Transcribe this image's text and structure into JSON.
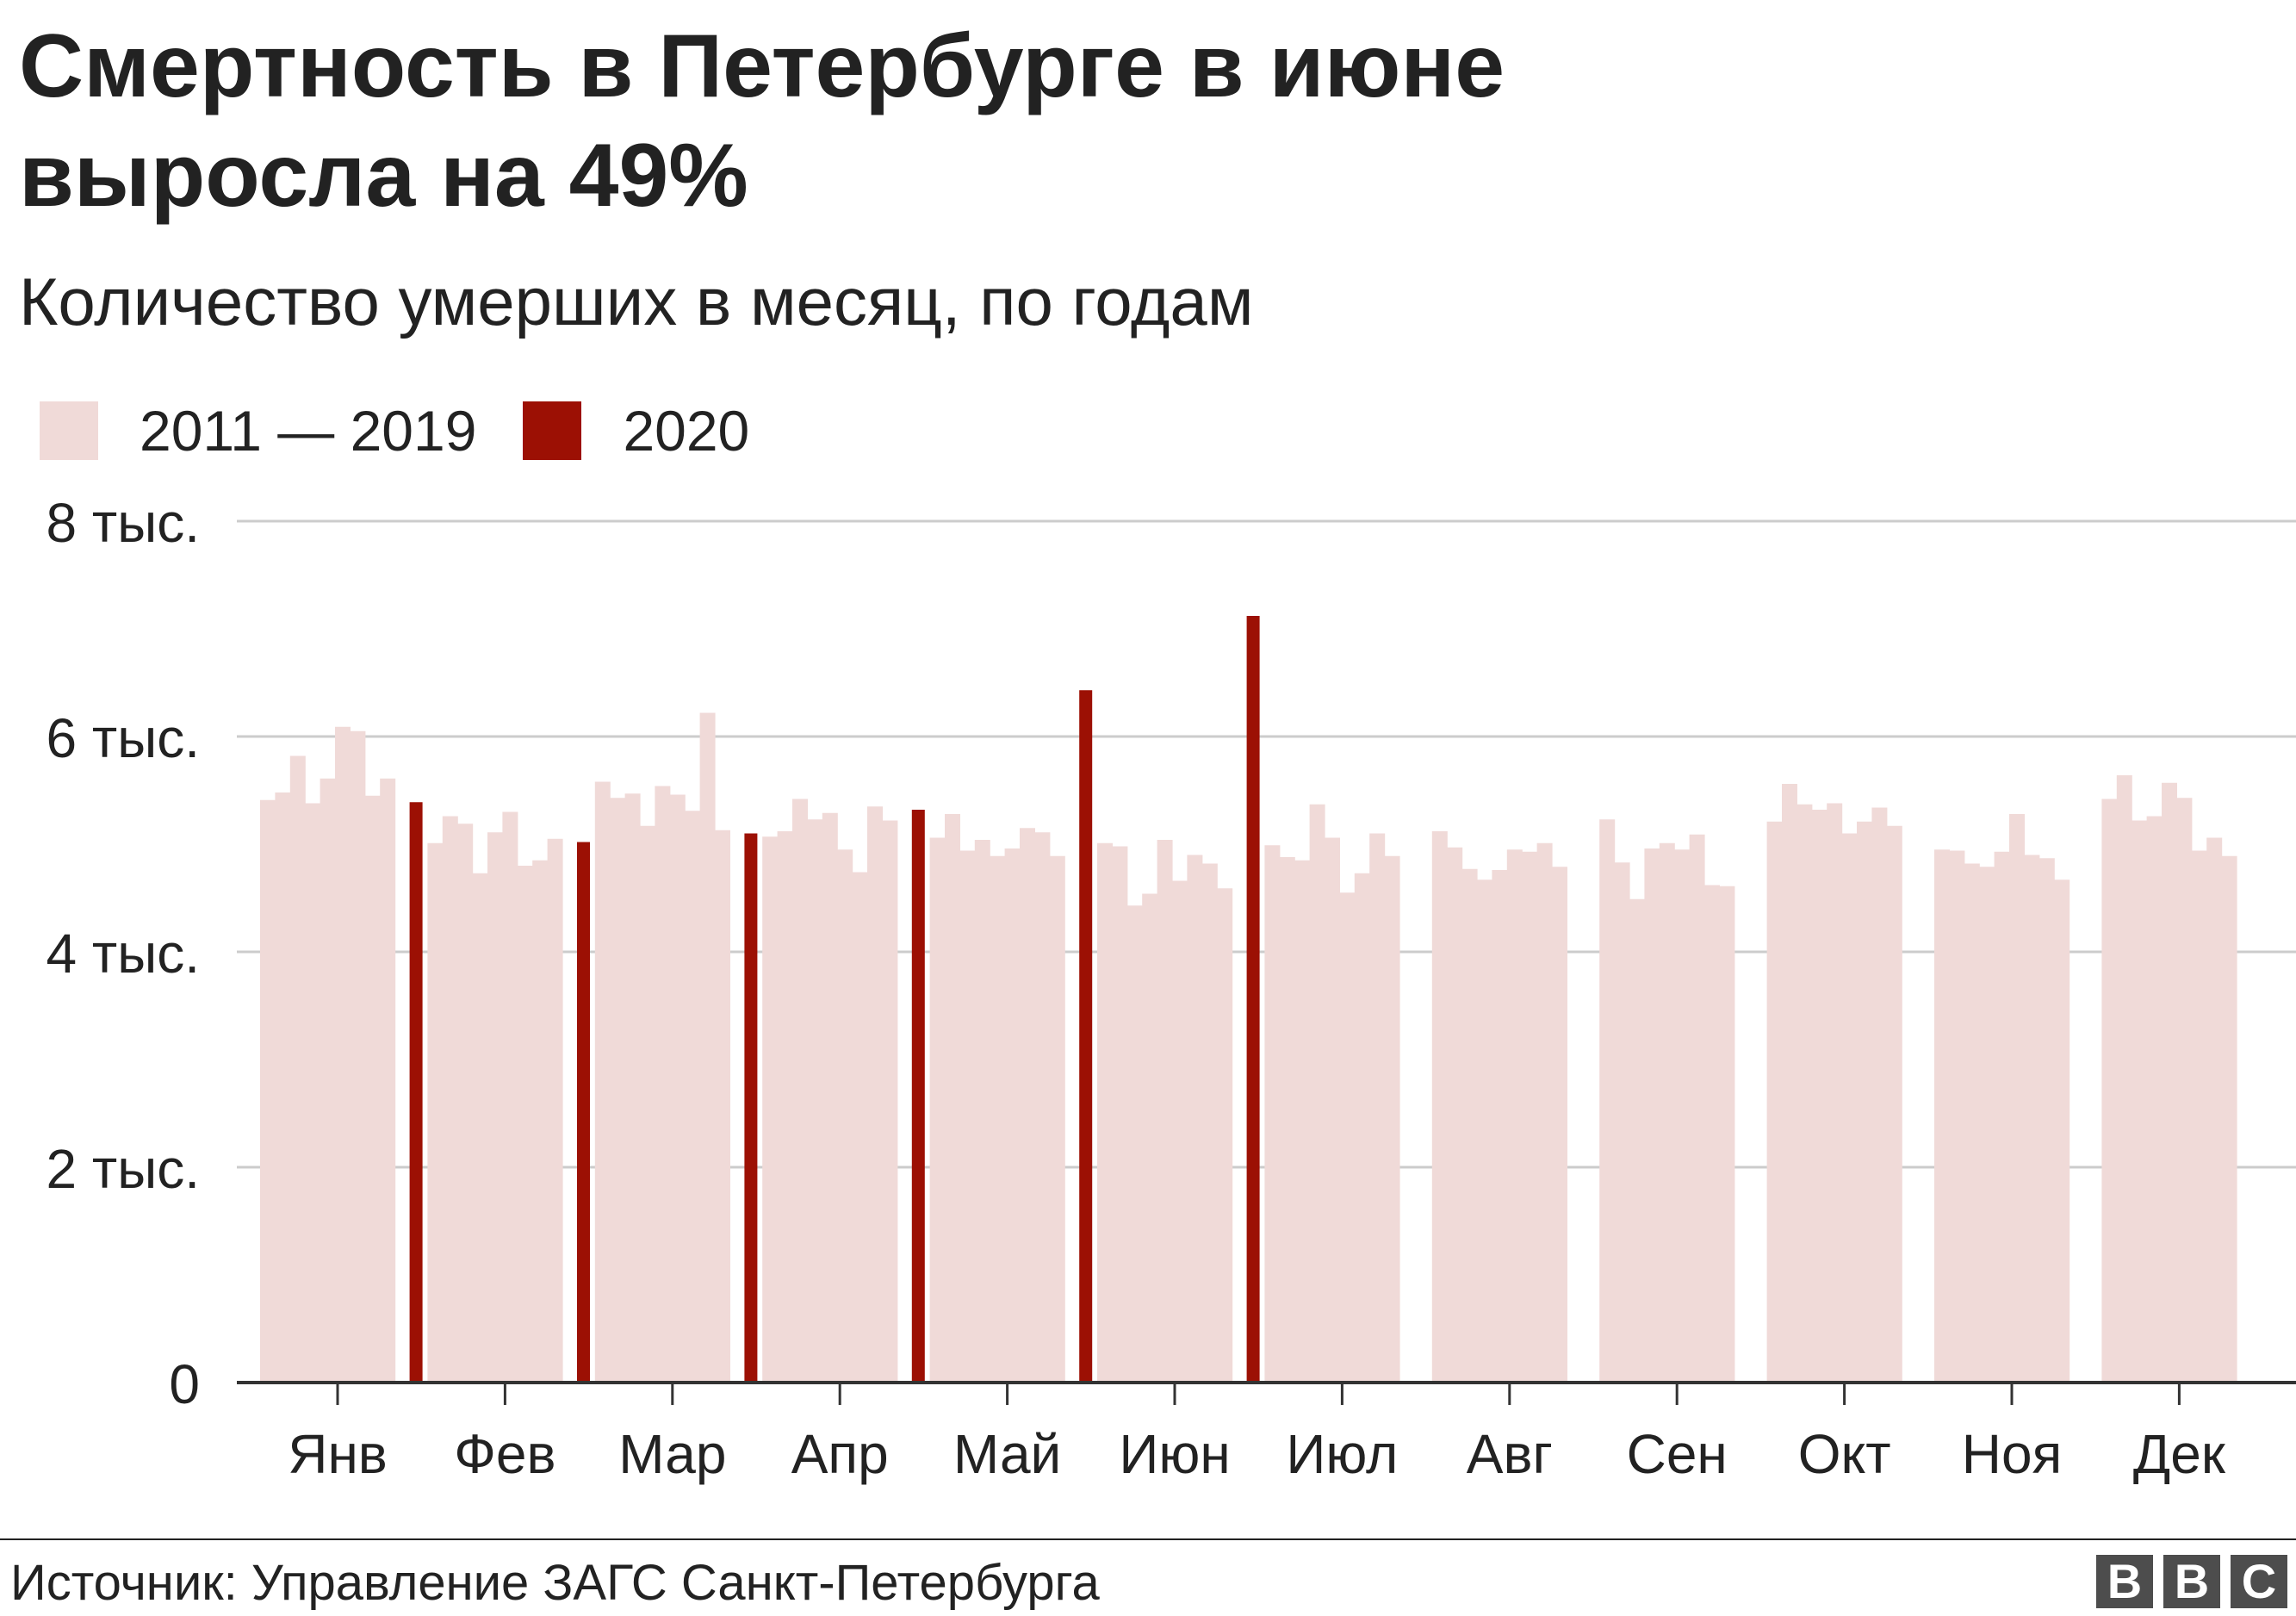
{
  "title": "Смертность в Петербурге в июне выросла на 49%",
  "subtitle": "Количество умерших в месяц, по годам",
  "legend": [
    {
      "label": "2011 — 2019",
      "color": "#f0dad8"
    },
    {
      "label": "2020",
      "color": "#9c1004"
    }
  ],
  "source": "Источник: Управление ЗАГС Санкт-Петербурга",
  "logo": [
    "B",
    "B",
    "C"
  ],
  "chart_data": {
    "type": "bar",
    "categories": [
      "Янв",
      "Фев",
      "Мар",
      "Апр",
      "Май",
      "Июн",
      "Июл",
      "Авг",
      "Сен",
      "Окт",
      "Ноя",
      "Дек"
    ],
    "yticks": [
      0,
      2000,
      4000,
      6000,
      8000
    ],
    "ytick_labels": [
      "0",
      "2 тыс.",
      "4 тыс.",
      "6 тыс.",
      "8 тыс."
    ],
    "ylim": [
      0,
      8000
    ],
    "grid": true,
    "legend_position": "top-left",
    "series": [
      {
        "name": "2011",
        "values": [
          5410,
          5010,
          5580,
          5070,
          5060,
          5010,
          4990,
          5120,
          5230,
          5210,
          4950,
          5420
        ]
      },
      {
        "name": "2012",
        "values": [
          5480,
          5260,
          5430,
          5120,
          5280,
          4980,
          4880,
          4970,
          4830,
          5560,
          4940,
          5640
        ]
      },
      {
        "name": "2013",
        "values": [
          5820,
          5190,
          5470,
          5420,
          4940,
          4430,
          4850,
          4770,
          4490,
          5370,
          4820,
          5220
        ]
      },
      {
        "name": "2014",
        "values": [
          5380,
          4730,
          5170,
          5230,
          5040,
          4540,
          5370,
          4670,
          4960,
          5320,
          4790,
          5260
        ]
      },
      {
        "name": "2015",
        "values": [
          5610,
          5110,
          5540,
          5290,
          4890,
          5040,
          5060,
          4760,
          5010,
          5380,
          4930,
          5570
        ]
      },
      {
        "name": "2016",
        "values": [
          6090,
          5300,
          5460,
          4950,
          4960,
          4660,
          4550,
          4950,
          4950,
          5100,
          5280,
          5430
        ]
      },
      {
        "name": "2017",
        "values": [
          6050,
          4800,
          5310,
          4740,
          5150,
          4900,
          4730,
          4930,
          5090,
          5210,
          4900,
          4940
        ]
      },
      {
        "name": "2018",
        "values": [
          5450,
          4850,
          6220,
          5350,
          5110,
          4820,
          5100,
          5010,
          4620,
          5340,
          4870,
          5060
        ]
      },
      {
        "name": "2019",
        "values": [
          5610,
          5050,
          5130,
          5220,
          4890,
          4590,
          4890,
          4790,
          4610,
          5170,
          4670,
          4890
        ]
      },
      {
        "name": "2020",
        "values": [
          5390,
          5020,
          5100,
          5320,
          6430,
          7120,
          null,
          null,
          null,
          null,
          null,
          null
        ]
      }
    ]
  }
}
